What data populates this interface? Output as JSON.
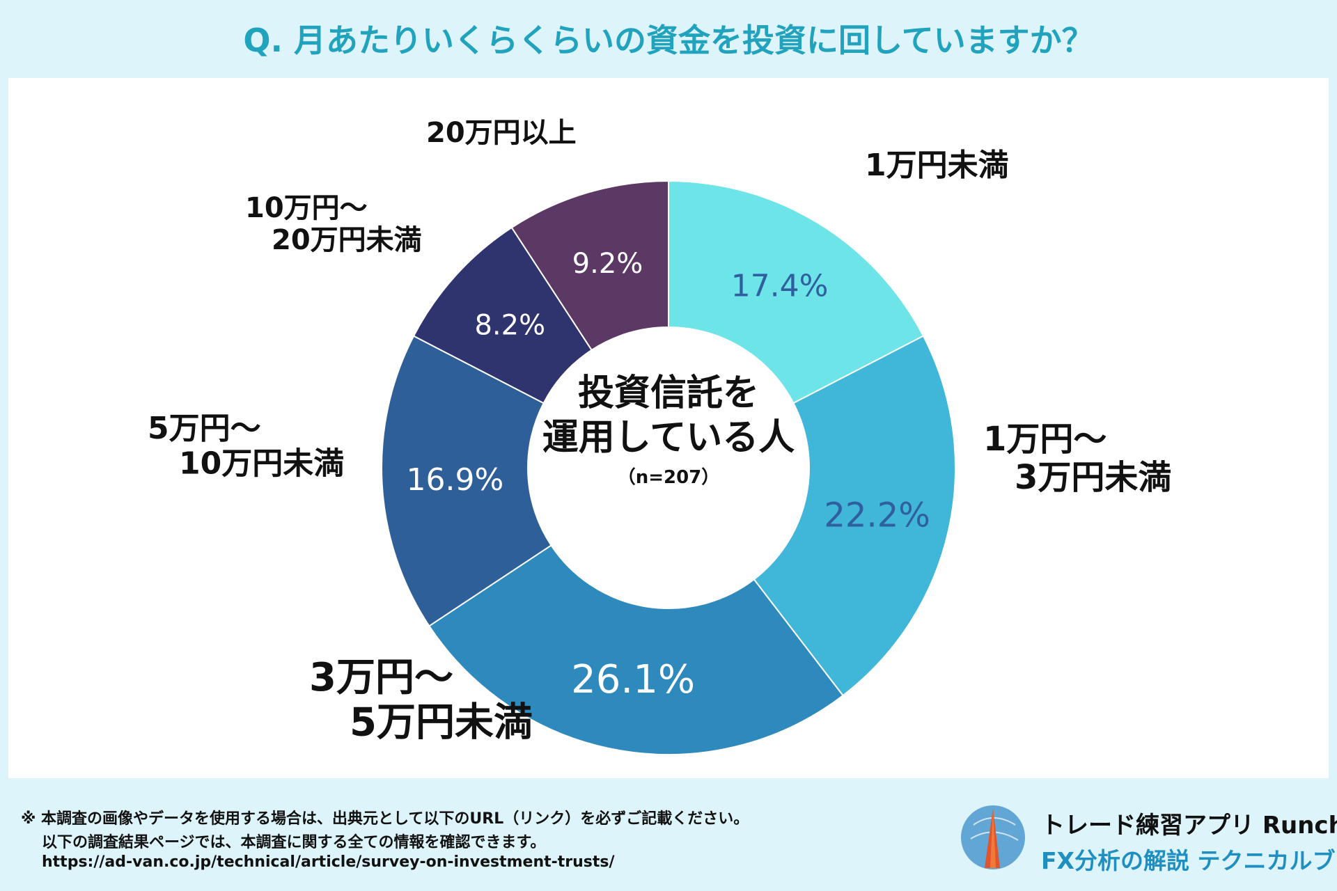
{
  "title": "Q. 月あたりいくらくらいの資金を投資に回していますか？",
  "center": {
    "line1": "投資信託を",
    "line2": "運用している人",
    "n": "（n=207）"
  },
  "chart_data": {
    "type": "pie",
    "title": "Q. 月あたりいくらくらいの資金を投資に回していますか？",
    "unit": "%",
    "slices": [
      {
        "label_lines": [
          "1万円未満"
        ],
        "value": 17.4,
        "value_label": "17.4%",
        "color": "#6ce4e8",
        "value_color": "#2f5f9e"
      },
      {
        "label_lines": [
          "1万円〜",
          "3万円未満"
        ],
        "value": 22.2,
        "value_label": "22.2%",
        "color": "#40b6d8",
        "value_color": "#2f5f9e"
      },
      {
        "label_lines": [
          "3万円〜",
          "5万円未満"
        ],
        "value": 26.1,
        "value_label": "26.1%",
        "color": "#2e89bc",
        "value_color": "#ffffff"
      },
      {
        "label_lines": [
          "5万円〜",
          "10万円未満"
        ],
        "value": 16.9,
        "value_label": "16.9%",
        "color": "#2e5f98",
        "value_color": "#ffffff"
      },
      {
        "label_lines": [
          "10万円〜",
          "20万円未満"
        ],
        "value": 8.2,
        "value_label": "8.2%",
        "color": "#2f346e",
        "value_color": "#ffffff"
      },
      {
        "label_lines": [
          "20万円以上"
        ],
        "value": 9.2,
        "value_label": "9.2%",
        "color": "#5c3864",
        "value_color": "#ffffff"
      }
    ]
  },
  "footer": {
    "line1": "※ 本調査の画像やデータを使用する場合は、出典元として以下のURL（リンク）を必ずご記載ください。",
    "line2": "以下の調査結果ページでは、本調査に関する全ての情報を確認できます。",
    "url": "https://ad-van.co.jp/technical/article/survey-on-investment-trusts/"
  },
  "brand": {
    "name": "トレード練習アプリ Runcha",
    "subtitle": "FX分析の解説 テクニカルブック"
  }
}
